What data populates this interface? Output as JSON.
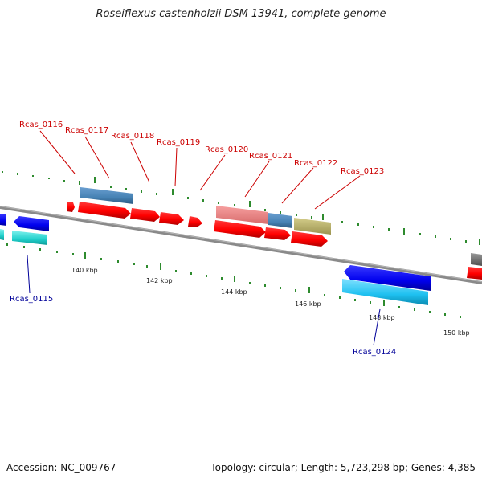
{
  "title": "Roseiflexus castenholzii DSM 13941, complete genome",
  "footer": {
    "accession": "Accession: NC_009767",
    "stats": "Topology: circular; Length: 5,723,298 bp; Genes: 4,385"
  },
  "colors": {
    "backbone": "#808080",
    "forward_label": "#cc0000",
    "reverse_label": "#000099",
    "tick_mark": "#2e8b2e"
  },
  "scale_labels": [
    "140 kbp",
    "142 kbp",
    "144 kbp",
    "146 kbp",
    "148 kbp",
    "150 kbp"
  ],
  "gene_labels": [
    {
      "text": "Rcas_0115",
      "strand": "reverse"
    },
    {
      "text": "Rcas_0116",
      "strand": "forward"
    },
    {
      "text": "Rcas_0117",
      "strand": "forward"
    },
    {
      "text": "Rcas_0118",
      "strand": "forward"
    },
    {
      "text": "Rcas_0119",
      "strand": "forward"
    },
    {
      "text": "Rcas_0120",
      "strand": "forward"
    },
    {
      "text": "Rcas_0121",
      "strand": "forward"
    },
    {
      "text": "Rcas_0122",
      "strand": "forward"
    },
    {
      "text": "Rcas_0123",
      "strand": "forward"
    },
    {
      "text": "Rcas_0124",
      "strand": "reverse"
    }
  ]
}
